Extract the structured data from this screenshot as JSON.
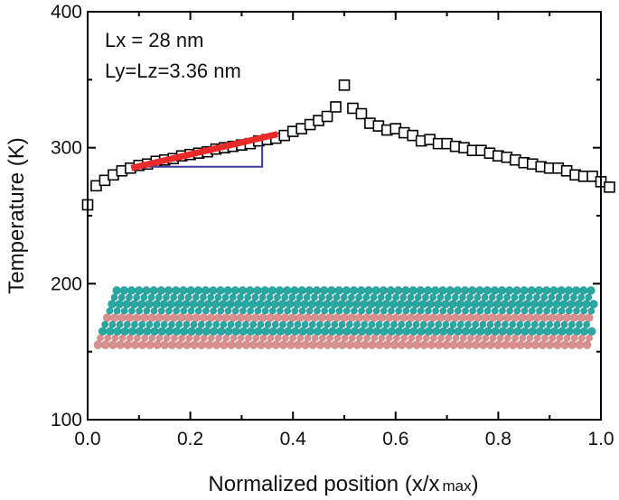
{
  "chart_data": {
    "type": "scatter",
    "title": "",
    "xlabel": "Normalized position (x/x",
    "xlabel_sub": "max",
    "xlabel_end": ")",
    "ylabel": "Temperature (K)",
    "xlim": [
      0.0,
      1.0
    ],
    "ylim": [
      100,
      400
    ],
    "x_ticks": [
      "0.0",
      "0.2",
      "0.4",
      "0.6",
      "0.8",
      "1.0"
    ],
    "y_ticks": [
      "100",
      "200",
      "300",
      "400"
    ],
    "grid": false,
    "marker": "open-square",
    "series": [
      {
        "x_start": 0.0,
        "x_step": 0.016667,
        "values": [
          258,
          272,
          276,
          280,
          283,
          285,
          287,
          288,
          290,
          291,
          292,
          294,
          295,
          296,
          297,
          299,
          300,
          301,
          302,
          303,
          305,
          306,
          307,
          309,
          312,
          314,
          317,
          320,
          323,
          330,
          346,
          329,
          325,
          318,
          316,
          313,
          314,
          311,
          309,
          305,
          306,
          303,
          303,
          301,
          300,
          298,
          298,
          296,
          294,
          293,
          291,
          289,
          288,
          286,
          285,
          285,
          283,
          280,
          279,
          279,
          275,
          271
        ]
      }
    ],
    "fit_line": {
      "x": [
        0.085,
        0.37
      ],
      "y": [
        285,
        310
      ],
      "color": "#e82a2a"
    },
    "slope_triangle": {
      "x": [
        0.12,
        0.34
      ],
      "y": [
        286,
        301
      ],
      "color": "#3a3aa8"
    },
    "annotations": [
      "Lx = 28 nm",
      "Ly=Lz=3.36 nm"
    ],
    "inset_structure": {
      "y_range": [
        155,
        195
      ],
      "x_range": [
        0.02,
        0.99
      ],
      "colors": [
        "#2aa7a3",
        "#d98f8f"
      ]
    }
  }
}
